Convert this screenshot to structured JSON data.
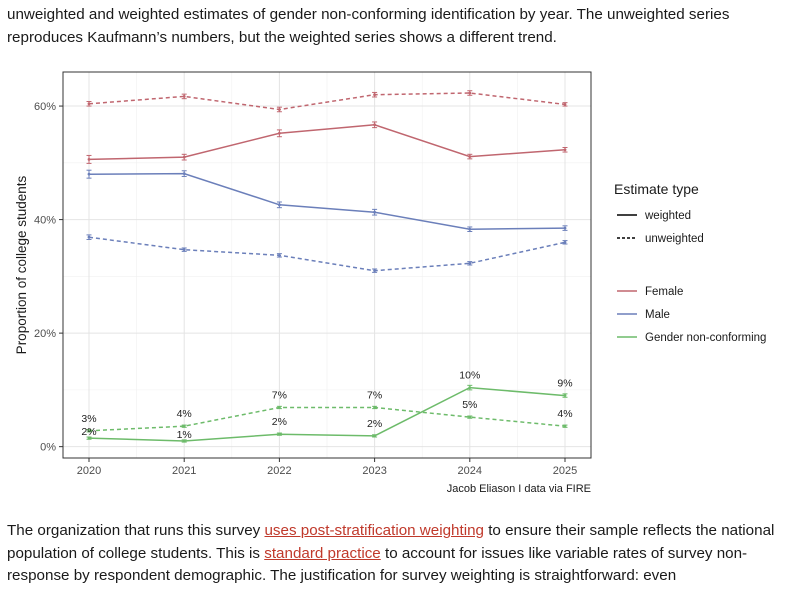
{
  "article": {
    "intro_text": "unweighted and weighted estimates of gender non-conforming identification by year. The unweighted series reproduces Kaufmann’s numbers, but the weighted series shows a different trend.",
    "para2_part1": "The organization that runs this survey ",
    "link1": "uses post-stratification weighting",
    "para2_part2": " to ensure their sample reflects the national population of college students. This is ",
    "link2": "standard practice",
    "para2_part3": " to account for issues like variable rates of survey non-response by respondent demographic. The justification for survey weighting is straightforward: even"
  },
  "chart_data": {
    "type": "line",
    "xlabel": "",
    "ylabel": "Proportion of college students",
    "ylim": [
      -0.02,
      0.66
    ],
    "yticks": [
      0,
      0.2,
      0.4,
      0.6
    ],
    "ytick_labels": [
      "0%",
      "20%",
      "40%",
      "60%"
    ],
    "x": [
      2020,
      2021,
      2022,
      2023,
      2024,
      2025
    ],
    "xtick_labels": [
      "2020",
      "2021",
      "2022",
      "2023",
      "2024",
      "2025"
    ],
    "caption": "Jacob Eliason I data via FIRE",
    "legend": {
      "linetype_title": "Estimate type",
      "linetype_items": [
        {
          "name": "weighted",
          "dash": "solid"
        },
        {
          "name": "unweighted",
          "dash": "dashed"
        }
      ],
      "color_items": [
        {
          "name": "Female",
          "color": "#c0666f"
        },
        {
          "name": "Male",
          "color": "#6b7fba"
        },
        {
          "name": "Gender non-conforming",
          "color": "#6dbb6a"
        }
      ]
    },
    "series": [
      {
        "group": "Female",
        "type": "unweighted",
        "color": "#c0666f",
        "values": [
          0.604,
          0.617,
          0.594,
          0.62,
          0.623,
          0.603
        ],
        "errors": [
          0.004,
          0.004,
          0.004,
          0.004,
          0.004,
          0.003
        ]
      },
      {
        "group": "Female",
        "type": "weighted",
        "color": "#c0666f",
        "values": [
          0.506,
          0.51,
          0.552,
          0.567,
          0.511,
          0.523
        ],
        "errors": [
          0.007,
          0.005,
          0.006,
          0.005,
          0.004,
          0.004
        ]
      },
      {
        "group": "Male",
        "type": "weighted",
        "color": "#6b7fba",
        "values": [
          0.48,
          0.481,
          0.426,
          0.413,
          0.383,
          0.385
        ],
        "errors": [
          0.007,
          0.005,
          0.005,
          0.005,
          0.004,
          0.004
        ]
      },
      {
        "group": "Male",
        "type": "unweighted",
        "color": "#6b7fba",
        "values": [
          0.369,
          0.347,
          0.337,
          0.31,
          0.323,
          0.36
        ],
        "errors": [
          0.004,
          0.003,
          0.003,
          0.003,
          0.003,
          0.003
        ]
      },
      {
        "group": "Gender non-conforming",
        "type": "weighted",
        "color": "#6dbb6a",
        "values": [
          0.015,
          0.01,
          0.022,
          0.019,
          0.104,
          0.09
        ],
        "errors": [
          0.002,
          0.002,
          0.002,
          0.002,
          0.004,
          0.003
        ],
        "labels": [
          "2%",
          "1%",
          "2%",
          "2%",
          "10%",
          "9%"
        ]
      },
      {
        "group": "Gender non-conforming",
        "type": "unweighted",
        "color": "#6dbb6a",
        "values": [
          0.028,
          0.036,
          0.069,
          0.069,
          0.052,
          0.036
        ],
        "errors": [
          0.002,
          0.002,
          0.002,
          0.002,
          0.002,
          0.002
        ],
        "labels": [
          "3%",
          "4%",
          "7%",
          "7%",
          "5%",
          "4%"
        ]
      }
    ]
  }
}
